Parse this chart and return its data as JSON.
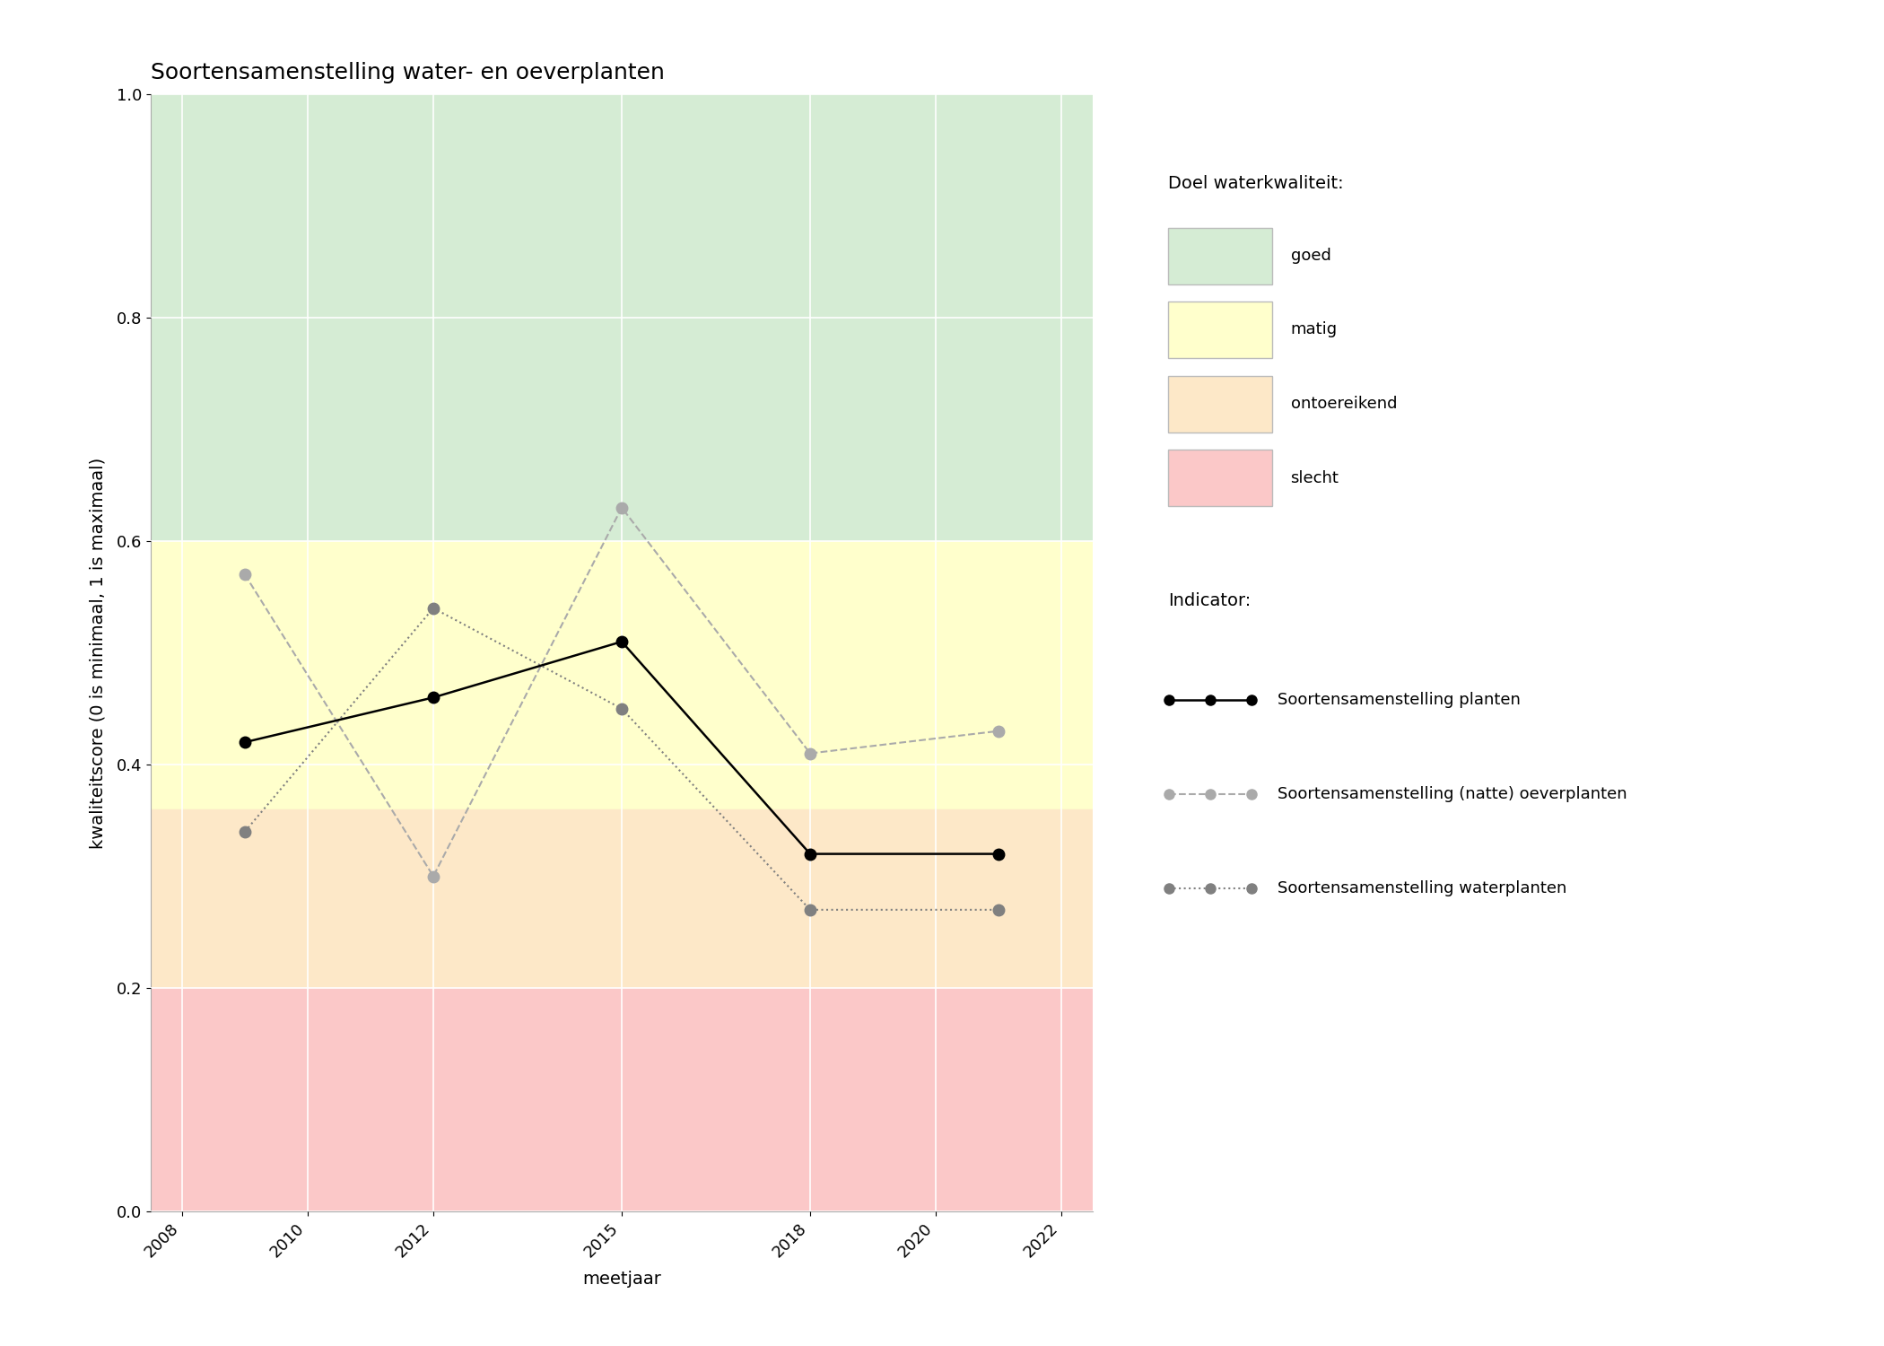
{
  "title": "Soortensamenstelling water- en oeverplanten",
  "xlabel": "meetjaar",
  "ylabel": "kwaliteitscore (0 is minimaal, 1 is maximaal)",
  "xlim": [
    2007.5,
    2022.5
  ],
  "ylim": [
    0.0,
    1.0
  ],
  "xticks": [
    2008,
    2010,
    2012,
    2015,
    2018,
    2020,
    2022
  ],
  "yticks": [
    0.0,
    0.2,
    0.4,
    0.6,
    0.8,
    1.0
  ],
  "zones": [
    {
      "ymin": 0.6,
      "ymax": 1.0,
      "color": "#d5ecd4",
      "label": "goed"
    },
    {
      "ymin": 0.36,
      "ymax": 0.6,
      "color": "#ffffcc",
      "label": "matig"
    },
    {
      "ymin": 0.2,
      "ymax": 0.36,
      "color": "#fde8c8",
      "label": "ontoereikend"
    },
    {
      "ymin": 0.0,
      "ymax": 0.2,
      "color": "#fbc8c8",
      "label": "slecht"
    }
  ],
  "series_planten": {
    "years": [
      2009,
      2012,
      2015,
      2018,
      2021
    ],
    "values": [
      0.42,
      0.46,
      0.51,
      0.32,
      0.32
    ],
    "color": "#000000",
    "linestyle": "-",
    "marker": "o",
    "markersize": 9,
    "linewidth": 1.8,
    "label": "Soortensamenstelling planten"
  },
  "series_oeverplanten": {
    "years": [
      2009,
      2012,
      2015,
      2018,
      2021
    ],
    "values": [
      0.57,
      0.3,
      0.63,
      0.41,
      0.43
    ],
    "color": "#aaaaaa",
    "linestyle": "--",
    "marker": "o",
    "markersize": 9,
    "linewidth": 1.5,
    "label": "Soortensamenstelling (natte) oeverplanten"
  },
  "series_waterplanten": {
    "years": [
      2009,
      2012,
      2015,
      2018,
      2021
    ],
    "values": [
      0.34,
      0.54,
      0.45,
      0.27,
      0.27
    ],
    "color": "#808080",
    "linestyle": ":",
    "marker": "o",
    "markersize": 9,
    "linewidth": 1.5,
    "label": "Soortensamenstelling waterplanten"
  },
  "legend_quality_title": "Doel waterkwaliteit:",
  "legend_indicator_title": "Indicator:",
  "zone_colors": {
    "goed": "#d5ecd4",
    "matig": "#ffffcc",
    "ontoereikend": "#fde8c8",
    "slecht": "#fbc8c8"
  },
  "zone_labels": [
    "goed",
    "matig",
    "ontoereikend",
    "slecht"
  ],
  "title_fontsize": 18,
  "axis_label_fontsize": 14,
  "tick_fontsize": 13,
  "legend_fontsize": 13,
  "legend_title_fontsize": 14,
  "grid_color": "#ffffff",
  "grid_linewidth": 1.2
}
